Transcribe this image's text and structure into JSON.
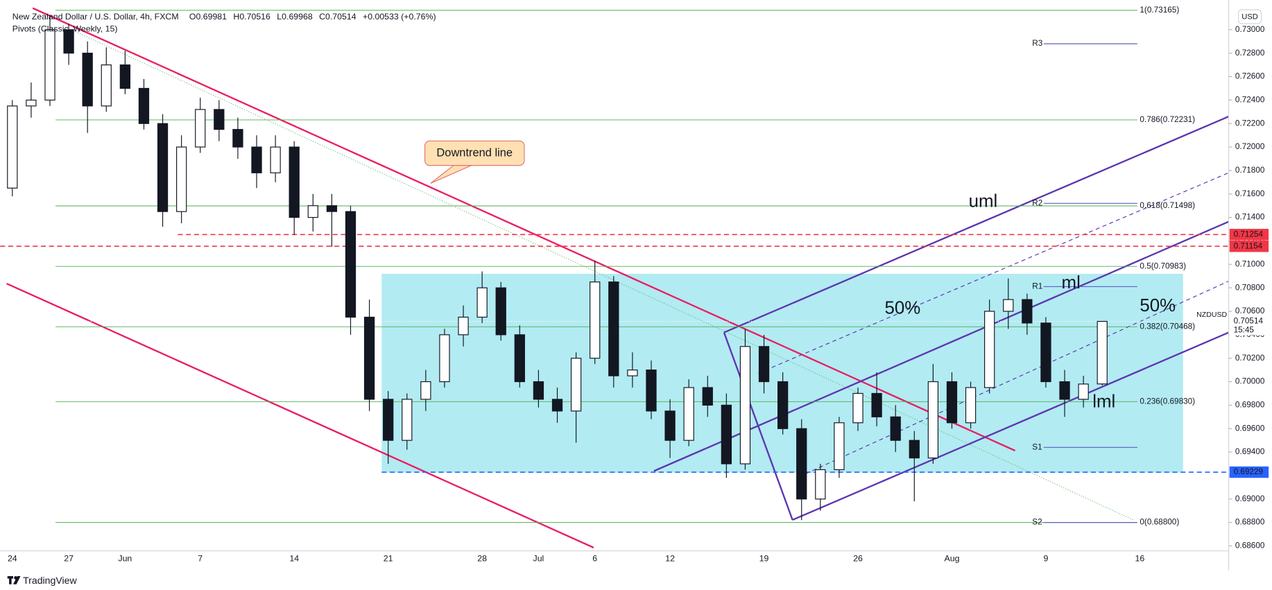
{
  "chart_data": {
    "type": "candlestick",
    "title": "New Zealand Dollar / U.S. Dollar, 4h, FXCM",
    "legend_values": [
      "O0.69981",
      "H0.70516",
      "L0.69968",
      "C0.70514",
      "+0.00533 (+0.76%)"
    ],
    "indicator": "Pivots (Classic, Weekly, 15)",
    "currency": "USD",
    "brand": "TradingView",
    "categories": [
      "24",
      null,
      null,
      "27",
      null,
      null,
      "Jun",
      null,
      null,
      null,
      "7",
      null,
      null,
      null,
      null,
      "14",
      null,
      null,
      null,
      null,
      "21",
      null,
      null,
      null,
      null,
      "28",
      null,
      null,
      "Jul",
      null,
      null,
      "6",
      null,
      null,
      null,
      "12",
      null,
      null,
      null,
      null,
      "19",
      null,
      null,
      null,
      null,
      "26",
      null,
      null,
      null,
      null,
      "Aug",
      null,
      null,
      null,
      null,
      "9",
      null,
      null,
      null,
      null,
      "16",
      null,
      null,
      null,
      null
    ],
    "open": [
      0.7165,
      0.7235,
      0.724,
      0.73,
      0.728,
      0.7235,
      0.727,
      0.725,
      0.722,
      0.7145,
      0.72,
      0.7232,
      0.7215,
      0.72,
      0.7178,
      0.72,
      0.714,
      0.715,
      0.7145,
      0.7055,
      0.6985,
      0.695,
      0.6985,
      0.7,
      0.704,
      0.7055,
      0.708,
      0.704,
      0.7,
      0.6985,
      0.6975,
      0.702,
      0.7085,
      0.7005,
      0.701,
      0.6975,
      0.695,
      0.6995,
      0.698,
      0.693,
      0.703,
      0.7,
      0.696,
      0.69,
      0.6925,
      0.6965,
      0.699,
      0.697,
      0.695,
      0.6935,
      0.7,
      0.6965,
      0.6995,
      0.706,
      0.707,
      0.705,
      0.7,
      0.6985,
      0.69981,
      null,
      null,
      null,
      null,
      null,
      null
    ],
    "high": [
      0.724,
      0.7255,
      0.7312,
      0.7305,
      0.729,
      0.7285,
      0.7282,
      0.7258,
      0.7228,
      0.721,
      0.7242,
      0.724,
      0.7225,
      0.721,
      0.721,
      0.7205,
      0.716,
      0.716,
      0.715,
      0.707,
      0.6992,
      0.699,
      0.701,
      0.7045,
      0.7065,
      0.7094,
      0.7085,
      0.7048,
      0.701,
      0.6995,
      0.7025,
      0.7103,
      0.709,
      0.7025,
      0.7018,
      0.6985,
      0.7002,
      0.7005,
      0.699,
      0.7045,
      0.704,
      0.7008,
      0.6968,
      0.693,
      0.697,
      0.6995,
      0.7008,
      0.698,
      0.6958,
      0.7015,
      0.7008,
      0.7,
      0.707,
      0.7088,
      0.7075,
      0.7055,
      0.701,
      0.7005,
      0.70516,
      null,
      null,
      null,
      null,
      null,
      null
    ],
    "low": [
      0.7158,
      0.7225,
      0.7235,
      0.727,
      0.7212,
      0.723,
      0.7245,
      0.7215,
      0.7132,
      0.7135,
      0.7195,
      0.7205,
      0.719,
      0.7165,
      0.717,
      0.7125,
      0.7128,
      0.7115,
      0.704,
      0.6975,
      0.693,
      0.6942,
      0.6975,
      0.6995,
      0.703,
      0.705,
      0.7035,
      0.6995,
      0.6978,
      0.6965,
      0.6948,
      0.7015,
      0.6995,
      0.6995,
      0.6968,
      0.6935,
      0.6945,
      0.697,
      0.6918,
      0.6925,
      0.699,
      0.6955,
      0.6882,
      0.689,
      0.6918,
      0.6958,
      0.6962,
      0.694,
      0.6898,
      0.693,
      0.696,
      0.696,
      0.699,
      0.7045,
      0.704,
      0.6995,
      0.697,
      0.6978,
      0.69968,
      null,
      null,
      null,
      null,
      null,
      null
    ],
    "close": [
      0.7235,
      0.724,
      0.73,
      0.728,
      0.7235,
      0.727,
      0.725,
      0.722,
      0.7145,
      0.72,
      0.7232,
      0.7215,
      0.72,
      0.7178,
      0.72,
      0.714,
      0.715,
      0.7145,
      0.7055,
      0.6985,
      0.695,
      0.6985,
      0.7,
      0.704,
      0.7055,
      0.708,
      0.704,
      0.7,
      0.6985,
      0.6975,
      0.702,
      0.7085,
      0.7005,
      0.701,
      0.6975,
      0.695,
      0.6995,
      0.698,
      0.693,
      0.703,
      0.7,
      0.696,
      0.69,
      0.6925,
      0.6965,
      0.699,
      0.697,
      0.695,
      0.6935,
      0.7,
      0.6965,
      0.6995,
      0.706,
      0.707,
      0.705,
      0.7,
      0.6985,
      0.6998,
      0.70514,
      null,
      null,
      null,
      null,
      null,
      null
    ],
    "up_color": "#ffffff",
    "down_color": "#131722",
    "ylim": [
      0.68558,
      0.73253
    ],
    "yticks": [
      {
        "value": 0.686,
        "label": "0.68600"
      },
      {
        "value": 0.688,
        "label": "0.68800"
      },
      {
        "value": 0.69,
        "label": "0.69000"
      },
      {
        "value": 0.692,
        "label": "0.69200"
      },
      {
        "value": 0.694,
        "label": "0.69400"
      },
      {
        "value": 0.696,
        "label": "0.69600"
      },
      {
        "value": 0.698,
        "label": "0.69800"
      },
      {
        "value": 0.7,
        "label": "0.70000"
      },
      {
        "value": 0.702,
        "label": "0.70200"
      },
      {
        "value": 0.704,
        "label": "0.70400"
      },
      {
        "value": 0.706,
        "label": "0.70600"
      },
      {
        "value": 0.708,
        "label": "0.70800"
      },
      {
        "value": 0.71,
        "label": "0.71000"
      },
      {
        "value": 0.712,
        "label": "0.71200"
      },
      {
        "value": 0.714,
        "label": "0.71400"
      },
      {
        "value": 0.716,
        "label": "0.71600"
      },
      {
        "value": 0.718,
        "label": "0.71800"
      },
      {
        "value": 0.72,
        "label": "0.72000"
      },
      {
        "value": 0.722,
        "label": "0.72200"
      },
      {
        "value": 0.724,
        "label": "0.72400"
      },
      {
        "value": 0.726,
        "label": "0.72600"
      },
      {
        "value": 0.728,
        "label": "0.72800"
      },
      {
        "value": 0.73,
        "label": "0.73000"
      }
    ],
    "fib_levels": [
      {
        "value": 0.73165,
        "label": "1(0.73165)"
      },
      {
        "value": 0.72231,
        "label": "0.786(0.72231)"
      },
      {
        "value": 0.71498,
        "label": "0.618(0.71498)"
      },
      {
        "value": 0.70983,
        "label": "0.5(0.70983)"
      },
      {
        "value": 0.70468,
        "label": "0.382(0.70468)"
      },
      {
        "value": 0.6983,
        "label": "0.236(0.69830)"
      },
      {
        "value": 0.688,
        "label": "0(0.68800)"
      }
    ],
    "fib_color": "#4caf50",
    "pivots": [
      {
        "value": 0.7288,
        "label": "R3"
      },
      {
        "value": 0.7152,
        "label": "R2"
      },
      {
        "value": 0.7081,
        "label": "R1"
      },
      {
        "value": 0.6944,
        "label": "S1"
      },
      {
        "value": 0.688,
        "label": "S2"
      }
    ],
    "pivot_color": "#5c5fc4",
    "price_tags": [
      {
        "value": 0.71254,
        "color": "#f23645"
      },
      {
        "value": 0.71154,
        "color": "#f23645"
      },
      {
        "value": 0.69229,
        "color": "#2962ff"
      }
    ],
    "last_price": {
      "symbol": "NZDUSD",
      "value": 0.70514,
      "time": "15:45"
    },
    "annotations": [
      "Downtrend line",
      "uml",
      "ml",
      "lml",
      "50%",
      "50%"
    ]
  }
}
